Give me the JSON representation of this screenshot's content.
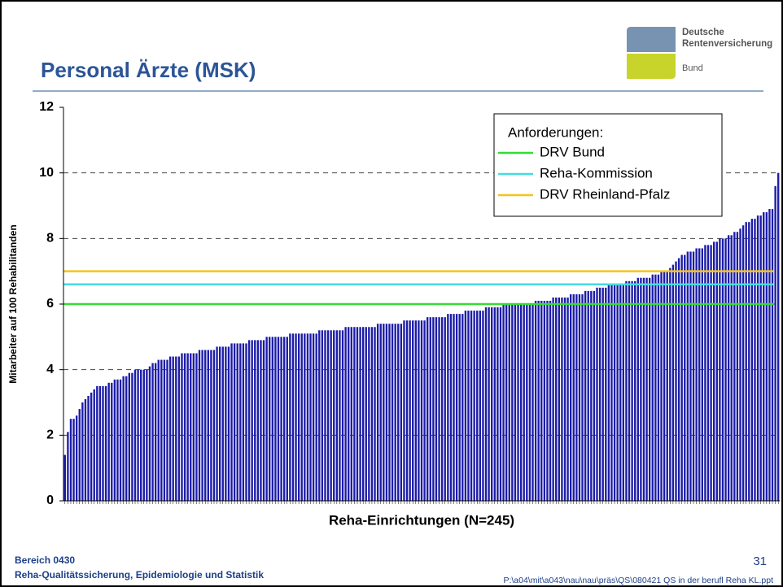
{
  "header": {
    "title": "Personal Ärzte (MSK)",
    "logo": [
      "Deutsche",
      "Rentenversicherung",
      "Bund"
    ]
  },
  "chart_data": {
    "type": "bar",
    "y_label": "Mitarbeiter auf 100 Rehabilitanden",
    "x_label": "Reha-Einrichtungen (N=245)",
    "color": "#1c1ca8",
    "ylim": [
      0,
      12
    ],
    "yticks": [
      0,
      2,
      4,
      6,
      8,
      10,
      12
    ],
    "grid": true,
    "legend_title": "Anforderungen:",
    "reference_lines": [
      {
        "name": "DRV Bund",
        "color": "#33dd33",
        "value": 6.0
      },
      {
        "name": "Reha-Kommission",
        "color": "#44dddd",
        "value": 6.6
      },
      {
        "name": "DRV Rheinland-Pfalz",
        "color": "#f5c518",
        "value": 7.0
      }
    ],
    "values": [
      1.4,
      2.1,
      2.5,
      2.5,
      2.6,
      2.8,
      3.0,
      3.1,
      3.2,
      3.3,
      3.4,
      3.5,
      3.5,
      3.5,
      3.5,
      3.6,
      3.6,
      3.7,
      3.7,
      3.7,
      3.8,
      3.8,
      3.9,
      3.9,
      4.0,
      4.0,
      4.0,
      4.0,
      4.0,
      4.1,
      4.2,
      4.2,
      4.3,
      4.3,
      4.3,
      4.3,
      4.4,
      4.4,
      4.4,
      4.4,
      4.5,
      4.5,
      4.5,
      4.5,
      4.5,
      4.5,
      4.6,
      4.6,
      4.6,
      4.6,
      4.6,
      4.6,
      4.7,
      4.7,
      4.7,
      4.7,
      4.7,
      4.8,
      4.8,
      4.8,
      4.8,
      4.8,
      4.8,
      4.9,
      4.9,
      4.9,
      4.9,
      4.9,
      4.9,
      5.0,
      5.0,
      5.0,
      5.0,
      5.0,
      5.0,
      5.0,
      5.0,
      5.1,
      5.1,
      5.1,
      5.1,
      5.1,
      5.1,
      5.1,
      5.1,
      5.1,
      5.1,
      5.2,
      5.2,
      5.2,
      5.2,
      5.2,
      5.2,
      5.2,
      5.2,
      5.2,
      5.3,
      5.3,
      5.3,
      5.3,
      5.3,
      5.3,
      5.3,
      5.3,
      5.3,
      5.3,
      5.3,
      5.4,
      5.4,
      5.4,
      5.4,
      5.4,
      5.4,
      5.4,
      5.4,
      5.4,
      5.5,
      5.5,
      5.5,
      5.5,
      5.5,
      5.5,
      5.5,
      5.5,
      5.6,
      5.6,
      5.6,
      5.6,
      5.6,
      5.6,
      5.6,
      5.7,
      5.7,
      5.7,
      5.7,
      5.7,
      5.7,
      5.8,
      5.8,
      5.8,
      5.8,
      5.8,
      5.8,
      5.8,
      5.9,
      5.9,
      5.9,
      5.9,
      5.9,
      5.9,
      6.0,
      6.0,
      6.0,
      6.0,
      6.0,
      6.0,
      6.0,
      6.0,
      6.0,
      6.0,
      6.0,
      6.1,
      6.1,
      6.1,
      6.1,
      6.1,
      6.1,
      6.2,
      6.2,
      6.2,
      6.2,
      6.2,
      6.2,
      6.3,
      6.3,
      6.3,
      6.3,
      6.3,
      6.4,
      6.4,
      6.4,
      6.4,
      6.5,
      6.5,
      6.5,
      6.5,
      6.6,
      6.6,
      6.6,
      6.6,
      6.6,
      6.6,
      6.7,
      6.7,
      6.7,
      6.7,
      6.8,
      6.8,
      6.8,
      6.8,
      6.8,
      6.9,
      6.9,
      6.9,
      7.0,
      7.0,
      7.0,
      7.1,
      7.2,
      7.3,
      7.4,
      7.5,
      7.5,
      7.6,
      7.6,
      7.6,
      7.7,
      7.7,
      7.7,
      7.8,
      7.8,
      7.8,
      7.9,
      7.9,
      8.0,
      8.0,
      8.0,
      8.1,
      8.1,
      8.2,
      8.2,
      8.3,
      8.4,
      8.5,
      8.5,
      8.6,
      8.6,
      8.7,
      8.7,
      8.8,
      8.8,
      8.9,
      8.9,
      9.6,
      10.0
    ]
  },
  "footer": {
    "department": "Bereich 0430",
    "unit": "Reha-Qualitätssicherung, Epidemiologie und Statistik",
    "page": "31",
    "path": "P:\\a04\\mit\\a043\\nau\\nau\\präs\\QS\\080421 QS in der berufl Reha KL.ppt"
  }
}
